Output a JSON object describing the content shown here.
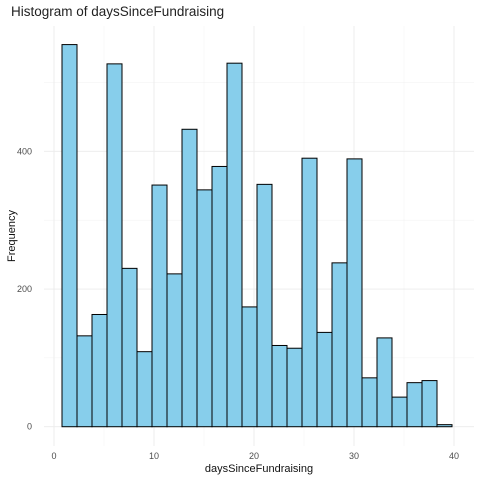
{
  "chart_data": {
    "type": "bar",
    "title": "Histogram of daysSinceFundraising",
    "xlabel": "daysSinceFundraising",
    "ylabel": "Frequency",
    "bin_width": 1.5,
    "bins": [
      {
        "x0": 0.8,
        "x1": 2.3,
        "count": 555
      },
      {
        "x0": 2.3,
        "x1": 3.8,
        "count": 132
      },
      {
        "x0": 3.8,
        "x1": 5.3,
        "count": 163
      },
      {
        "x0": 5.3,
        "x1": 6.8,
        "count": 527
      },
      {
        "x0": 6.8,
        "x1": 8.3,
        "count": 230
      },
      {
        "x0": 8.3,
        "x1": 9.8,
        "count": 109
      },
      {
        "x0": 9.8,
        "x1": 11.3,
        "count": 351
      },
      {
        "x0": 11.3,
        "x1": 12.8,
        "count": 222
      },
      {
        "x0": 12.8,
        "x1": 14.3,
        "count": 432
      },
      {
        "x0": 14.3,
        "x1": 15.8,
        "count": 344
      },
      {
        "x0": 15.8,
        "x1": 17.3,
        "count": 378
      },
      {
        "x0": 17.3,
        "x1": 18.8,
        "count": 528
      },
      {
        "x0": 18.8,
        "x1": 20.3,
        "count": 174
      },
      {
        "x0": 20.3,
        "x1": 21.8,
        "count": 352
      },
      {
        "x0": 21.8,
        "x1": 23.3,
        "count": 118
      },
      {
        "x0": 23.3,
        "x1": 24.8,
        "count": 114
      },
      {
        "x0": 24.8,
        "x1": 26.3,
        "count": 390
      },
      {
        "x0": 26.3,
        "x1": 27.8,
        "count": 137
      },
      {
        "x0": 27.8,
        "x1": 29.3,
        "count": 238
      },
      {
        "x0": 29.3,
        "x1": 30.8,
        "count": 389
      },
      {
        "x0": 30.8,
        "x1": 32.3,
        "count": 71
      },
      {
        "x0": 32.3,
        "x1": 33.8,
        "count": 129
      },
      {
        "x0": 33.8,
        "x1": 35.3,
        "count": 43
      },
      {
        "x0": 35.3,
        "x1": 36.8,
        "count": 64
      },
      {
        "x0": 36.8,
        "x1": 38.3,
        "count": 67
      },
      {
        "x0": 38.3,
        "x1": 39.8,
        "count": 3
      }
    ],
    "xlim": [
      -1.0,
      42.0
    ],
    "ylim": [
      -28,
      582
    ],
    "x_ticks": [
      0,
      10,
      20,
      30,
      40
    ],
    "y_ticks": [
      0,
      200,
      400
    ],
    "grid": true,
    "colors": {
      "fill": "#87ceeb",
      "outline": "#000000",
      "grid": "#ebebeb"
    }
  }
}
